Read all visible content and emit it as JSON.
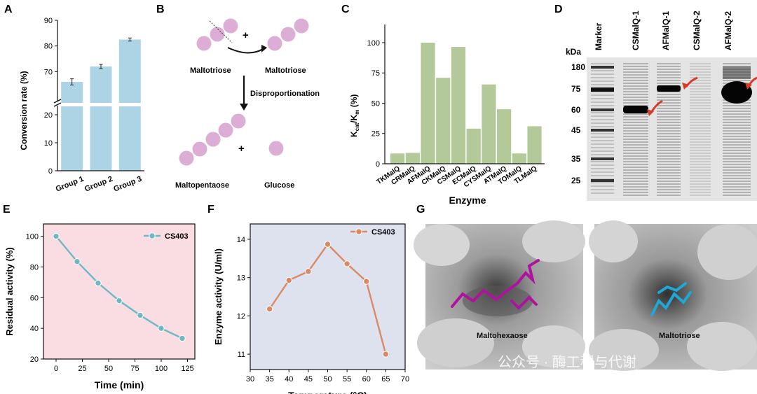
{
  "panels": {
    "a": {
      "letter": "A"
    },
    "b": {
      "letter": "B"
    },
    "c": {
      "letter": "C"
    },
    "d": {
      "letter": "D"
    },
    "e": {
      "letter": "E"
    },
    "f": {
      "letter": "F"
    },
    "g": {
      "letter": "G"
    }
  },
  "panel_b": {
    "plus_1": "+",
    "plus_2": "+",
    "label_maltotriose_left": "Maltotriose",
    "label_maltotriose_right": "Maltotriose",
    "label_reaction": "Disproportionation",
    "label_maltopentaose": "Maltopentaose",
    "label_glucose": "Glucose"
  },
  "panel_d": {
    "kda_label": "kDa",
    "lanes": [
      "Marker",
      "CSMalQ-1",
      "AFMalQ-1",
      "CSMalQ-2",
      "AFMalQ-2"
    ],
    "markers": [
      "180",
      "75",
      "60",
      "45",
      "35",
      "25"
    ]
  },
  "panel_g": {
    "label_left": "Maltohexaose",
    "label_right": "Maltotriose",
    "watermark": "公众号 · 酶工程与代谢"
  },
  "chart_data": [
    {
      "panel": "A",
      "type": "bar",
      "categories": [
        "Group 1",
        "Group 2",
        "Group 3"
      ],
      "values": [
        66.0,
        72.0,
        82.5
      ],
      "errors": [
        1.2,
        0.8,
        0.6
      ],
      "ylabel": "Conversion rate (%)",
      "xlabel": "",
      "y_ticks_lower": [
        "0",
        "10",
        "20"
      ],
      "y_ticks_upper": [
        "70",
        "80",
        "90"
      ],
      "ylim_lower": [
        0,
        22
      ],
      "ylim_upper": [
        60,
        90
      ],
      "broken_axis": true,
      "bar_color": "#add4e5"
    },
    {
      "panel": "C",
      "type": "bar",
      "categories": [
        "TKMalQ",
        "CRMalQ",
        "AFMalQ",
        "CKMalQ",
        "CSMalQ",
        "ECMalQ",
        "CYSMalQ",
        "ATMalQ",
        "TOMalQ",
        "TLMalQ"
      ],
      "values": [
        8.5,
        9,
        100,
        71,
        96.5,
        29,
        65.5,
        45,
        8.5,
        31
      ],
      "ylabel_main": "K",
      "ylabel_sub1": "cat",
      "ylabel_mid": "/K",
      "ylabel_sub2": "m",
      "ylabel_end": " (%)",
      "xlabel": "Enzyme",
      "y_ticks": [
        "0",
        "25",
        "50",
        "75",
        "100"
      ],
      "ylim": [
        0,
        115
      ],
      "bar_color": "#b4c999"
    },
    {
      "panel": "E",
      "type": "line",
      "series": [
        {
          "name": "CS403",
          "x": [
            0,
            20,
            40,
            60,
            80,
            100,
            120
          ],
          "y": [
            100,
            83.5,
            69.5,
            58,
            48.5,
            40,
            33.5
          ]
        }
      ],
      "xlabel": "Time (min)",
      "ylabel": "Residual activity (%)",
      "x_ticks": [
        "0",
        "25",
        "50",
        "75",
        "100",
        "125"
      ],
      "y_ticks": [
        "20",
        "40",
        "60",
        "80",
        "100"
      ],
      "xlim": [
        -12,
        132
      ],
      "ylim": [
        20,
        108
      ],
      "background": "#f9dde2",
      "line_color": "#6fb8c4"
    },
    {
      "panel": "F",
      "type": "line",
      "series": [
        {
          "name": "CS403",
          "x": [
            35,
            40,
            45,
            50,
            55,
            60,
            65
          ],
          "y": [
            12.18,
            12.93,
            13.16,
            13.87,
            13.36,
            12.9,
            11.0
          ]
        }
      ],
      "xlabel": "Temperature (°C)",
      "ylabel": "Enzyme activity (U/ml)",
      "x_ticks": [
        "30",
        "35",
        "40",
        "45",
        "50",
        "55",
        "60",
        "65",
        "70"
      ],
      "y_ticks": [
        "11",
        "12",
        "13",
        "14"
      ],
      "xlim": [
        30,
        70
      ],
      "ylim": [
        10.6,
        14.4
      ],
      "background": "#dde2ee",
      "line_color": "#d98a64"
    }
  ]
}
